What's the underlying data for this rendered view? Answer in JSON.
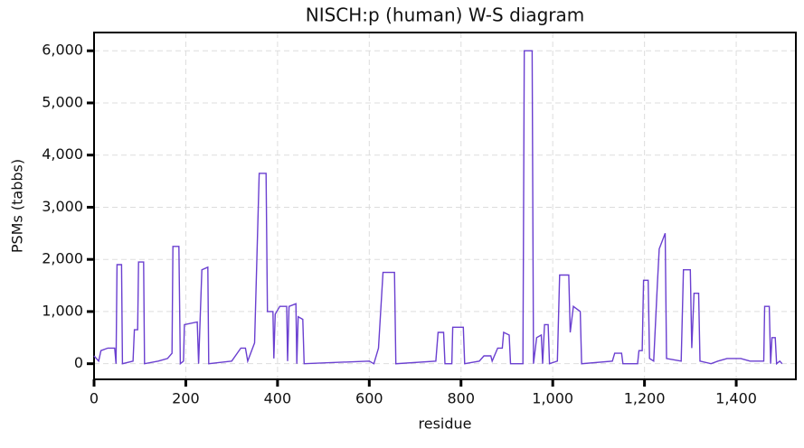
{
  "chart_data": {
    "type": "line",
    "title": "NISCH:p (human) W-S diagram",
    "xlabel": "residue",
    "ylabel": "PSMs (tabbs)",
    "xlim": [
      0,
      1530
    ],
    "ylim": [
      -300,
      6350
    ],
    "xticks": [
      0,
      200,
      400,
      600,
      800,
      {
        "value": 1000,
        "label": "1,000"
      },
      {
        "value": 1200,
        "label": "1,200"
      },
      {
        "value": 1400,
        "label": "1,400"
      }
    ],
    "yticks": [
      0,
      {
        "value": 1000,
        "label": "1,000"
      },
      {
        "value": 2000,
        "label": "2,000"
      },
      {
        "value": 3000,
        "label": "3,000"
      },
      {
        "value": 4000,
        "label": "4,000"
      },
      {
        "value": 5000,
        "label": "5,000"
      },
      {
        "value": 6000,
        "label": "6,000"
      }
    ],
    "grid": true,
    "x": [
      0,
      10,
      15,
      30,
      45,
      48,
      50,
      60,
      62,
      85,
      88,
      95,
      97,
      108,
      110,
      140,
      160,
      170,
      172,
      185,
      188,
      195,
      197,
      225,
      228,
      235,
      248,
      250,
      300,
      320,
      330,
      335,
      350,
      360,
      375,
      378,
      390,
      392,
      395,
      405,
      420,
      422,
      425,
      440,
      442,
      445,
      455,
      458,
      600,
      610,
      620,
      630,
      655,
      658,
      745,
      750,
      762,
      765,
      780,
      782,
      805,
      808,
      840,
      850,
      865,
      868,
      880,
      890,
      893,
      905,
      908,
      935,
      938,
      955,
      958,
      965,
      975,
      978,
      982,
      990,
      993,
      1010,
      1015,
      1035,
      1038,
      1045,
      1060,
      1063,
      1130,
      1135,
      1150,
      1153,
      1185,
      1188,
      1195,
      1198,
      1208,
      1211,
      1220,
      1228,
      1232,
      1245,
      1248,
      1280,
      1285,
      1300,
      1303,
      1308,
      1318,
      1321,
      1345,
      1360,
      1380,
      1410,
      1430,
      1460,
      1462,
      1472,
      1475,
      1478,
      1485,
      1488,
      1495,
      1500
    ],
    "series": [
      {
        "color": "#6a3fd0",
        "values": [
          150,
          50,
          250,
          300,
          300,
          0,
          1900,
          1900,
          0,
          50,
          650,
          650,
          1950,
          1950,
          0,
          50,
          100,
          200,
          2250,
          2250,
          0,
          50,
          750,
          800,
          0,
          1800,
          1850,
          0,
          50,
          300,
          300,
          50,
          400,
          3650,
          3650,
          1000,
          1000,
          100,
          950,
          1100,
          1100,
          50,
          1100,
          1150,
          0,
          900,
          850,
          0,
          50,
          0,
          300,
          1750,
          1750,
          0,
          50,
          600,
          600,
          0,
          0,
          700,
          700,
          0,
          50,
          150,
          150,
          50,
          300,
          300,
          600,
          550,
          0,
          0,
          6000,
          6000,
          0,
          500,
          550,
          0,
          750,
          750,
          0,
          50,
          1700,
          1700,
          600,
          1100,
          1000,
          0,
          50,
          200,
          200,
          0,
          0,
          250,
          250,
          1600,
          1600,
          100,
          50,
          1500,
          2200,
          2500,
          100,
          50,
          1800,
          1800,
          300,
          1350,
          1350,
          50,
          0,
          50,
          100,
          100,
          50,
          50,
          1100,
          1100,
          0,
          500,
          500,
          0,
          50,
          0
        ]
      }
    ]
  }
}
